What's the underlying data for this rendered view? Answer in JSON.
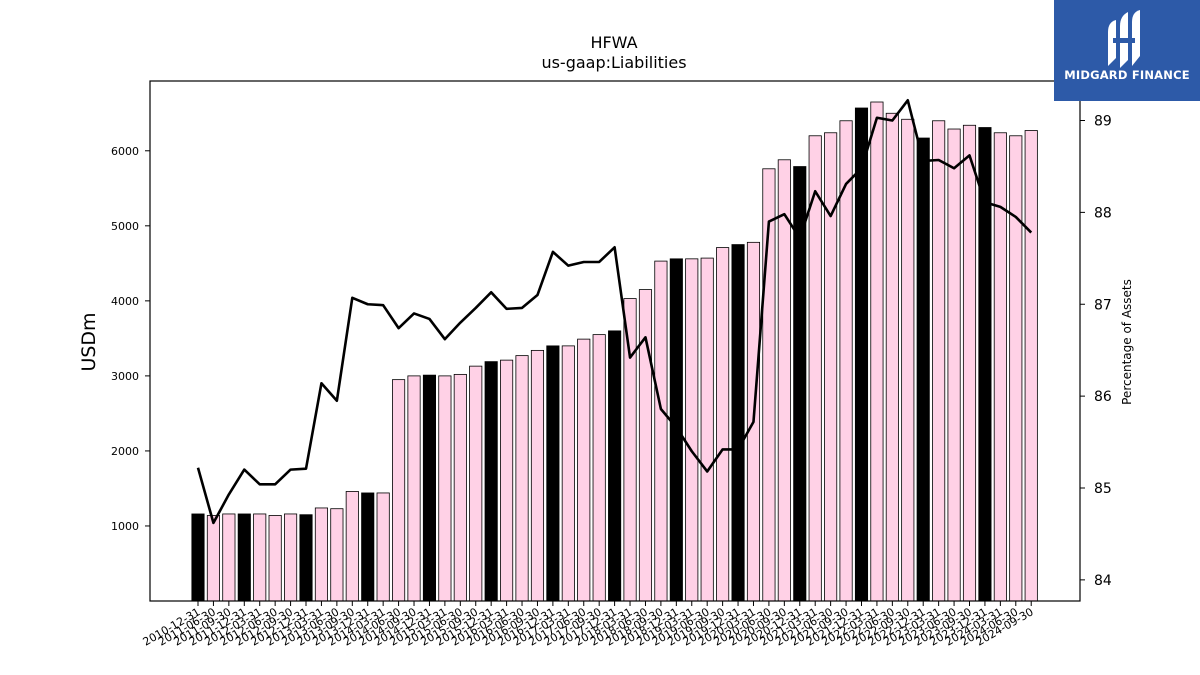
{
  "chart_data": {
    "type": "bar+line",
    "title": "HFWA",
    "subtitle": "us-gaap:Liabilities",
    "ylabel": "USDm",
    "y2label": "Percentage of Assets",
    "ylim": [
      0,
      6930
    ],
    "y2lim": [
      83.77,
      89.43
    ],
    "yticks": [
      1000,
      2000,
      3000,
      4000,
      5000,
      6000
    ],
    "y2ticks": [
      84,
      85,
      86,
      87,
      88,
      89
    ],
    "grid": false,
    "legend": "none",
    "colors": {
      "bar_q4": "#000000",
      "bar_other": "#ffd1e6",
      "bar_edge": "#000000",
      "line": "#000000"
    },
    "categories": [
      "2010-12-31",
      "2011-06-30",
      "2011-09-30",
      "2011-12-31",
      "2012-03-31",
      "2012-06-30",
      "2012-09-30",
      "2012-12-31",
      "2013-03-31",
      "2013-06-30",
      "2013-09-30",
      "2013-12-31",
      "2014-03-31",
      "2014-06-30",
      "2014-09-30",
      "2014-12-31",
      "2015-03-31",
      "2015-06-30",
      "2015-09-30",
      "2015-12-31",
      "2016-03-31",
      "2016-06-30",
      "2016-09-30",
      "2016-12-31",
      "2017-03-31",
      "2017-06-30",
      "2017-09-30",
      "2017-12-31",
      "2018-03-31",
      "2018-06-30",
      "2018-09-30",
      "2018-12-31",
      "2019-03-31",
      "2019-06-30",
      "2019-09-30",
      "2019-12-31",
      "2020-03-31",
      "2020-06-30",
      "2020-09-30",
      "2020-12-31",
      "2021-03-31",
      "2021-06-30",
      "2021-09-30",
      "2021-12-31",
      "2022-03-31",
      "2022-06-30",
      "2022-09-30",
      "2022-12-31",
      "2023-03-31",
      "2023-06-30",
      "2023-09-30",
      "2023-12-31",
      "2024-03-31",
      "2024-06-30",
      "2024-09-30"
    ],
    "series": [
      {
        "kind": "bar",
        "values": [
          1160,
          1140,
          1160,
          1160,
          1160,
          1140,
          1160,
          1150,
          1240,
          1230,
          1460,
          1440,
          1440,
          2950,
          3000,
          3010,
          3000,
          3020,
          3130,
          3190,
          3210,
          3270,
          3340,
          3400,
          3400,
          3490,
          3550,
          3600,
          4030,
          4150,
          4530,
          4560,
          4560,
          4570,
          4710,
          4750,
          4780,
          5760,
          5880,
          5790,
          6200,
          6240,
          6400,
          6570,
          6650,
          6500,
          6420,
          6170,
          6400,
          6290,
          6340,
          6310,
          6240,
          6200,
          6270
        ],
        "q4_flags": [
          1,
          0,
          0,
          1,
          0,
          0,
          0,
          1,
          0,
          0,
          0,
          1,
          0,
          0,
          0,
          1,
          0,
          0,
          0,
          1,
          0,
          0,
          0,
          1,
          0,
          0,
          0,
          1,
          0,
          0,
          0,
          1,
          0,
          0,
          0,
          1,
          0,
          0,
          0,
          1,
          0,
          0,
          0,
          1,
          0,
          0,
          0,
          1,
          0,
          0,
          0,
          1,
          0,
          0,
          0
        ]
      },
      {
        "kind": "line",
        "axis": "right",
        "values": [
          85.22,
          84.62,
          84.93,
          85.2,
          85.04,
          85.04,
          85.2,
          85.21,
          86.14,
          85.95,
          87.07,
          87.0,
          86.99,
          86.74,
          86.9,
          86.84,
          86.62,
          86.8,
          86.96,
          87.13,
          86.95,
          86.96,
          87.1,
          87.57,
          87.42,
          87.46,
          87.46,
          87.62,
          86.42,
          86.64,
          85.86,
          85.66,
          85.4,
          85.18,
          85.42,
          85.42,
          85.72,
          87.9,
          87.98,
          87.72,
          88.23,
          87.96,
          88.31,
          88.48,
          89.03,
          89.0,
          89.22,
          88.56,
          88.57,
          88.48,
          88.62,
          88.11,
          88.06,
          87.95,
          87.78
        ]
      }
    ]
  },
  "logo": {
    "name": "MIDGARD FINANCE"
  }
}
